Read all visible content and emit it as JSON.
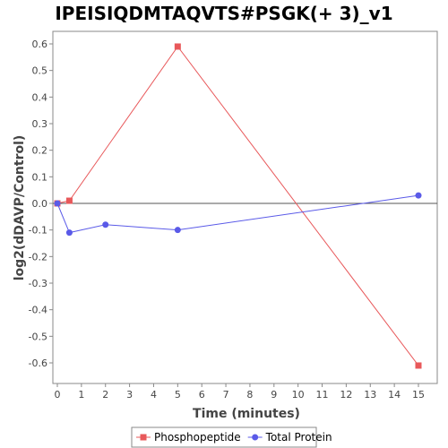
{
  "chart_data": {
    "type": "line",
    "title": "IPEISIQDMTAQVTS#PSGK(+ 3)_v1",
    "xlabel": "Time (minutes)",
    "ylabel": "log2(dDAVP/Control)",
    "xlim": [
      0,
      16
    ],
    "ylim": [
      -0.67,
      0.64
    ],
    "x_ticks": [
      0,
      1,
      2,
      3,
      4,
      5,
      6,
      7,
      8,
      9,
      10,
      11,
      12,
      13,
      14,
      15
    ],
    "y_ticks": [
      0.6,
      0.5,
      0.4,
      0.3,
      0.2,
      0.1,
      0.0,
      -0.1,
      -0.2,
      -0.3,
      -0.4,
      -0.5,
      -0.6
    ],
    "y_tick_labels": [
      "0.6",
      "0.5",
      "0.4",
      "0.3",
      "0.2",
      "0.1",
      "0.0",
      "-0.1",
      "-0.2",
      "-0.3",
      "-0.4",
      "-0.5",
      "-0.6"
    ],
    "zero_line": true,
    "grid": false,
    "legend_position": "bottom",
    "series": [
      {
        "name": "Phosphopeptide",
        "color": "#e8585a",
        "marker": "square",
        "points": [
          {
            "x": 0,
            "y": 0.0
          },
          {
            "x": 0.5,
            "y": 0.01
          },
          {
            "x": 5,
            "y": 0.59
          },
          {
            "x": 15,
            "y": -0.61
          }
        ]
      },
      {
        "name": "Total Protein",
        "color": "#5a5ae8",
        "marker": "circle",
        "points": [
          {
            "x": 0,
            "y": 0.0
          },
          {
            "x": 0.5,
            "y": -0.11
          },
          {
            "x": 2,
            "y": -0.08
          },
          {
            "x": 5,
            "y": -0.1
          },
          {
            "x": 15,
            "y": 0.03
          }
        ]
      }
    ]
  }
}
